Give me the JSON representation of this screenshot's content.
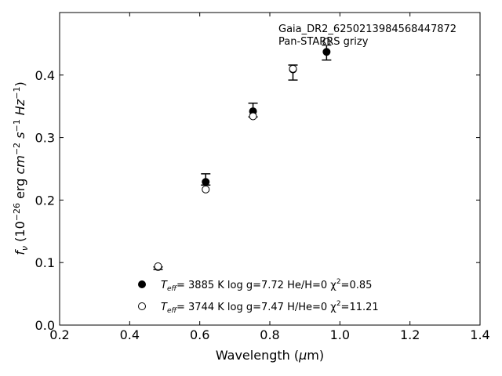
{
  "chart_data": {
    "type": "scatter",
    "xlabel": "Wavelength (μm)",
    "ylabel": "f_ν (10^−26 erg cm^−2 s^−1 Hz^−1)",
    "xlim": [
      0.2,
      1.4
    ],
    "ylim": [
      0.0,
      0.5
    ],
    "xticks": [
      "0.2",
      "0.4",
      "0.6",
      "0.8",
      "1.0",
      "1.2",
      "1.4"
    ],
    "yticks": [
      "0.0",
      "0.1",
      "0.2",
      "0.3",
      "0.4"
    ],
    "grid": false,
    "annotations": [
      "Gaia_DR2_6250213984568447872",
      "Pan-STARRS grizy"
    ],
    "observed": {
      "x": [
        0.481,
        0.617,
        0.752,
        0.866,
        0.962
      ],
      "y": [
        0.091,
        0.233,
        0.344,
        0.404,
        0.436
      ],
      "yerr": [
        0.002,
        0.009,
        0.011,
        0.012,
        0.012
      ]
    },
    "series": [
      {
        "name": "T_eff=  3885 K  log g=7.72  He/H=0  χ²=0.85",
        "marker": "filled-circle",
        "x": [
          0.481,
          0.617,
          0.752,
          0.866,
          0.962
        ],
        "y": [
          0.093,
          0.229,
          0.342,
          0.409,
          0.437
        ]
      },
      {
        "name": "T_eff=  3744 K  log g=7.47  H/He=0  χ²=11.21",
        "marker": "open-circle",
        "x": [
          0.481,
          0.617,
          0.752,
          0.866,
          0.962
        ],
        "y": [
          0.094,
          0.217,
          0.334,
          0.41,
          0.453
        ]
      }
    ],
    "legend_placement": "lower-center"
  }
}
